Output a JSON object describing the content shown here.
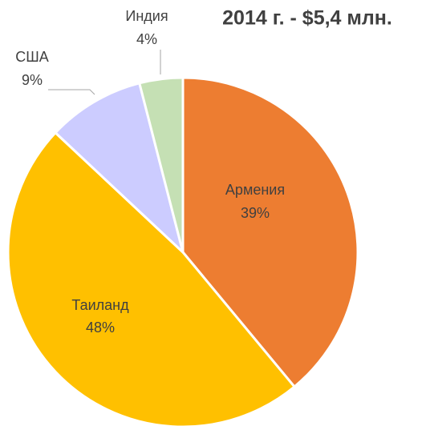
{
  "chart_data": {
    "type": "pie",
    "title": "2014 г. - $5,4 млн.",
    "categories": [
      "Армения",
      "Таиланд",
      "США",
      "Индия"
    ],
    "values": [
      39,
      48,
      9,
      4
    ],
    "value_labels": [
      "39%",
      "48%",
      "9%",
      "4%"
    ],
    "colors": [
      "#ed7d31",
      "#ffc000",
      "#ccccff",
      "#c5e0b4"
    ]
  }
}
